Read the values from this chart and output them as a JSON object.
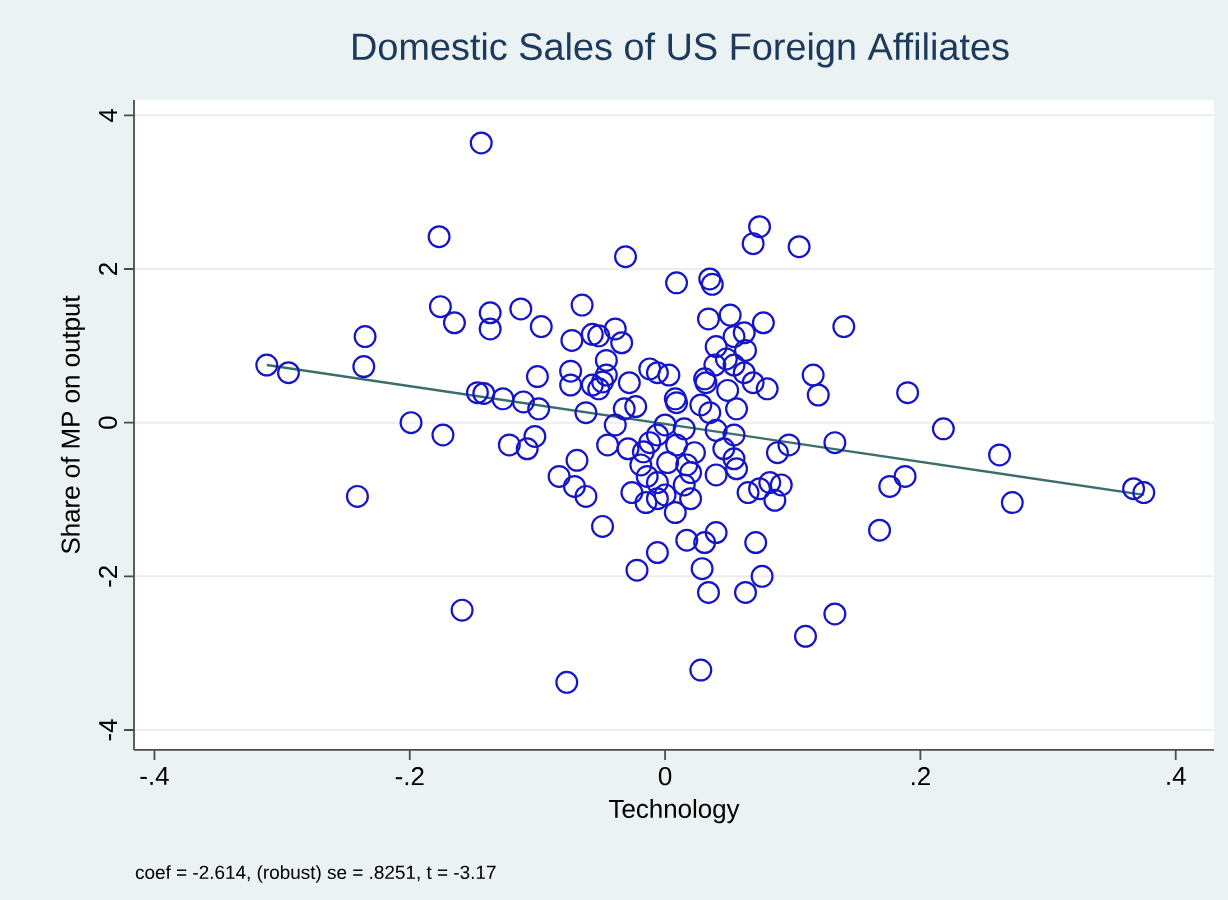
{
  "chart_data": {
    "type": "scatter",
    "title": "Domestic Sales of US Foreign Affiliates",
    "xlabel": "Technology",
    "ylabel": "Share of MP on output",
    "annotations": [
      "coef = -2.614, (robust) se = .8251, t = -3.17"
    ],
    "xlim": [
      -0.416,
      0.43
    ],
    "ylim": [
      -4.26,
      4.2
    ],
    "xticks": [
      {
        "value": -0.4,
        "label": "-.4"
      },
      {
        "value": -0.2,
        "label": "-.2"
      },
      0,
      {
        "value": 0.2,
        "label": ".2"
      },
      {
        "value": 0.4,
        "label": ".4"
      }
    ],
    "yticks": [
      -4,
      -2,
      0,
      2,
      4
    ],
    "grid": "y",
    "series": [
      {
        "marker": "circle",
        "color": "#1414c8",
        "x": [
          -0.144,
          -0.177,
          -0.176,
          -0.165,
          -0.137,
          -0.137,
          -0.235,
          -0.312,
          -0.295,
          -0.236,
          -0.147,
          -0.142,
          -0.199,
          -0.174,
          -0.241,
          -0.159,
          -0.031,
          -0.113,
          -0.097,
          -0.065,
          -0.073,
          -0.057,
          -0.052,
          -0.039,
          -0.034,
          -0.046,
          -0.1,
          -0.074,
          -0.074,
          -0.057,
          -0.049,
          -0.046,
          -0.052,
          -0.028,
          -0.012,
          -0.006,
          -0.127,
          -0.111,
          -0.099,
          -0.062,
          -0.032,
          -0.023,
          -0.039,
          -0.122,
          -0.108,
          -0.102,
          -0.045,
          -0.029,
          -0.017,
          -0.012,
          -0.006,
          -0.069,
          -0.083,
          -0.071,
          -0.062,
          -0.019,
          -0.026,
          -0.015,
          -0.006,
          0.0,
          -0.049,
          -0.006,
          -0.022,
          -0.077,
          -0.014,
          0.074,
          0.069,
          0.105,
          0.009,
          0.035,
          0.037,
          0.034,
          0.051,
          0.077,
          0.14,
          0.054,
          0.062,
          0.04,
          0.063,
          0.048,
          0.039,
          0.054,
          0.031,
          0.032,
          0.062,
          0.069,
          0.08,
          0.049,
          0.116,
          0.12,
          0.003,
          0.008,
          0.009,
          0.028,
          0.035,
          0.056,
          0.0,
          0.015,
          0.04,
          0.054,
          0.097,
          0.088,
          0.133,
          0.009,
          0.023,
          0.046,
          0.054,
          0.002,
          0.017,
          0.02,
          0.056,
          0.04,
          -0.006,
          0.015,
          0.065,
          0.074,
          0.082,
          0.091,
          0.086,
          0.02,
          0.008,
          0.017,
          0.031,
          0.04,
          0.071,
          0.029,
          0.034,
          0.063,
          0.076,
          0.11,
          0.133,
          0.028,
          0.19,
          0.218,
          0.262,
          0.188,
          0.176,
          0.272,
          0.168,
          0.367,
          0.375
        ],
        "values": [
          3.64,
          2.42,
          1.51,
          1.3,
          1.43,
          1.22,
          1.12,
          0.75,
          0.65,
          0.73,
          0.39,
          0.38,
          0.0,
          -0.16,
          -0.96,
          -2.44,
          2.16,
          1.48,
          1.25,
          1.53,
          1.07,
          1.15,
          1.13,
          1.22,
          1.04,
          0.81,
          0.6,
          0.67,
          0.49,
          0.49,
          0.53,
          0.62,
          0.44,
          0.52,
          0.7,
          0.65,
          0.31,
          0.27,
          0.18,
          0.13,
          0.18,
          0.21,
          -0.03,
          -0.29,
          -0.34,
          -0.18,
          -0.29,
          -0.34,
          -0.38,
          -0.26,
          -0.16,
          -0.49,
          -0.7,
          -0.83,
          -0.96,
          -0.55,
          -0.91,
          -1.04,
          -0.99,
          -0.94,
          -1.35,
          -1.69,
          -1.92,
          -3.38,
          -0.7,
          2.55,
          2.33,
          2.29,
          1.82,
          1.87,
          1.8,
          1.35,
          1.4,
          1.3,
          1.25,
          1.12,
          1.17,
          0.99,
          0.94,
          0.83,
          0.75,
          0.75,
          0.57,
          0.52,
          0.65,
          0.52,
          0.44,
          0.42,
          0.62,
          0.36,
          0.62,
          0.31,
          0.26,
          0.23,
          0.13,
          0.18,
          -0.03,
          -0.08,
          -0.1,
          -0.16,
          -0.29,
          -0.39,
          -0.26,
          -0.29,
          -0.39,
          -0.34,
          -0.47,
          -0.52,
          -0.55,
          -0.65,
          -0.6,
          -0.68,
          -0.78,
          -0.81,
          -0.91,
          -0.86,
          -0.78,
          -0.81,
          -1.01,
          -0.99,
          -1.17,
          -1.53,
          -1.56,
          -1.43,
          -1.56,
          -1.9,
          -2.21,
          -2.21,
          -2.0,
          -2.78,
          -2.49,
          -3.22,
          0.39,
          -0.08,
          -0.42,
          -0.7,
          -0.83,
          -1.04,
          -1.4,
          -0.86,
          -0.91
        ]
      },
      {
        "type": "line",
        "marker": "none",
        "color": "#3a6e6a",
        "x": [
          -0.312,
          0.375
        ],
        "values": [
          0.75,
          -0.94
        ]
      }
    ]
  }
}
